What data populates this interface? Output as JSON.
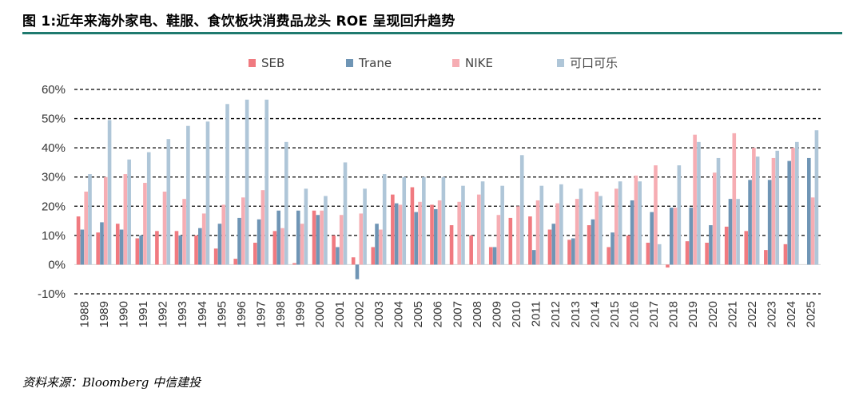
{
  "title": "图 1:近年来海外家电、鞋服、食饮板块消费品龙头 ROE 呈现回升趋势",
  "source": "资料来源：Bloomberg   中信建投",
  "chart_data": {
    "type": "bar",
    "ylim": [
      -10,
      60
    ],
    "yticks": [
      60,
      50,
      40,
      30,
      20,
      10,
      0,
      -10
    ],
    "ytick_labels": [
      "60%",
      "50%",
      "40%",
      "30%",
      "20%",
      "10%",
      "0%",
      "-10%"
    ],
    "grid": "dashed horizontal",
    "legend": "top",
    "categories": [
      "1988",
      "1989",
      "1990",
      "1991",
      "1992",
      "1993",
      "1994",
      "1995",
      "1996",
      "1997",
      "1998",
      "1999",
      "2000",
      "2001",
      "2002",
      "2003",
      "2004",
      "2005",
      "2006",
      "2007",
      "2008",
      "2009",
      "2010",
      "2011",
      "2012",
      "2013",
      "2014",
      "2015",
      "2016",
      "2017",
      "2018",
      "2019",
      "2020",
      "2021",
      "2022",
      "2023",
      "2024",
      "2025"
    ],
    "series": [
      {
        "name": "SEB",
        "color": "#f07a80",
        "values": [
          16.5,
          11,
          14,
          9,
          11.5,
          11.5,
          10,
          5.5,
          2,
          7.5,
          11.5,
          0.5,
          18.5,
          10,
          2.5,
          6,
          24,
          26.5,
          20.5,
          13.5,
          10,
          6,
          16,
          16.5,
          12,
          8.5,
          13.5,
          6,
          10,
          7.5,
          -1,
          8,
          7.5,
          13,
          11.5,
          5,
          7,
          null
        ]
      },
      {
        "name": "Trane",
        "color": "#6f95b5",
        "values": [
          12,
          14.5,
          12,
          10,
          null,
          10,
          12.5,
          14,
          16,
          15.5,
          18.5,
          18.5,
          17,
          6,
          -5,
          14,
          21,
          18,
          19,
          null,
          null,
          6,
          null,
          5,
          14,
          9,
          15.5,
          11,
          22,
          18,
          19.5,
          19.5,
          13.5,
          22.5,
          29,
          29,
          35.5,
          36.5
        ]
      },
      {
        "name": "NIKE",
        "color": "#f6adb3",
        "values": [
          25,
          30,
          31,
          28,
          25,
          22.5,
          17.5,
          20.5,
          23,
          25.5,
          12.5,
          14,
          18.5,
          17,
          17.5,
          12,
          20.5,
          21.5,
          22,
          21.5,
          24,
          17,
          20,
          22,
          21,
          22.5,
          25,
          26,
          30.5,
          34,
          19.5,
          44.5,
          31.5,
          45,
          40,
          36.5,
          40,
          23
        ]
      },
      {
        "name": "可口可乐",
        "color": "#afc6d8",
        "values": [
          31,
          49.5,
          36,
          38.5,
          43,
          47.5,
          49,
          55,
          56.5,
          56.5,
          42,
          26,
          23.5,
          35,
          26,
          31,
          30,
          30,
          30,
          27,
          28.5,
          27,
          37.5,
          27,
          27.5,
          26,
          23.5,
          28.5,
          28.5,
          7,
          34,
          42,
          36.5,
          22.5,
          37,
          39,
          42,
          46
        ]
      }
    ]
  }
}
